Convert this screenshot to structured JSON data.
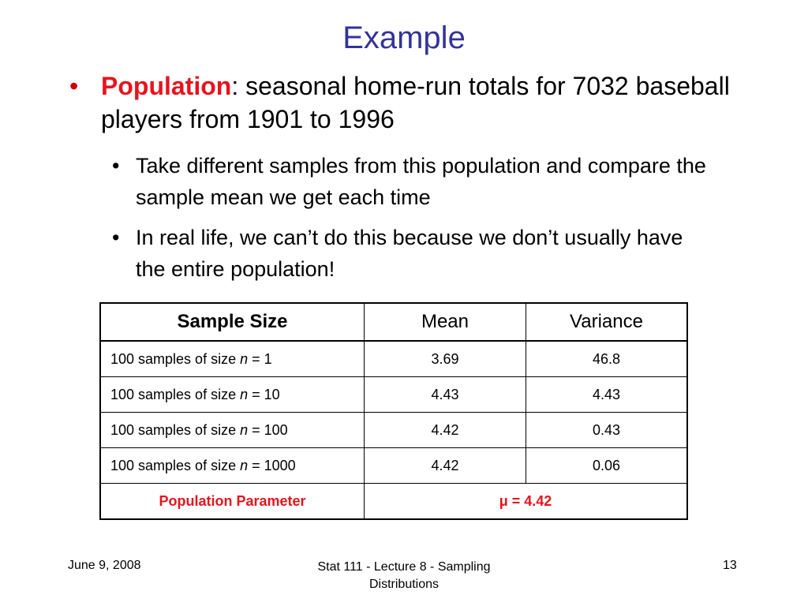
{
  "slide": {
    "title": "Example",
    "bullet": {
      "marker": "•",
      "term": "Population",
      "text": ": seasonal home-run totals for 7032 baseball players from 1901 to 1996"
    },
    "sub_bullets": [
      {
        "marker": "•",
        "text": "Take different samples from this population and compare the sample mean we get each time"
      },
      {
        "marker": "•",
        "text": "In real life, we can’t do this because we don’t usually have the entire population!"
      }
    ]
  },
  "table": {
    "headers": [
      "Sample Size",
      "Mean",
      "Variance"
    ],
    "rows": [
      {
        "label_prefix": "100 samples of size ",
        "var": "n",
        "label_suffix": " = 1",
        "mean": "3.69",
        "variance": "46.8"
      },
      {
        "label_prefix": "100 samples of size ",
        "var": "n",
        "label_suffix": " = 10",
        "mean": "4.43",
        "variance": "4.43"
      },
      {
        "label_prefix": "100 samples of size ",
        "var": "n",
        "label_suffix": " = 100",
        "mean": "4.42",
        "variance": "0.43"
      },
      {
        "label_prefix": "100 samples of size ",
        "var": "n",
        "label_suffix": " = 1000",
        "mean": "4.42",
        "variance": "0.06"
      }
    ],
    "parameter_label": "Population Parameter",
    "parameter_value": "μ = 4.42"
  },
  "footer": {
    "date": "June 9, 2008",
    "title": "Stat 111 - Lecture 8 - Sampling Distributions",
    "page": "13"
  },
  "colors": {
    "title": "#333399",
    "highlight": "#e6141e"
  }
}
